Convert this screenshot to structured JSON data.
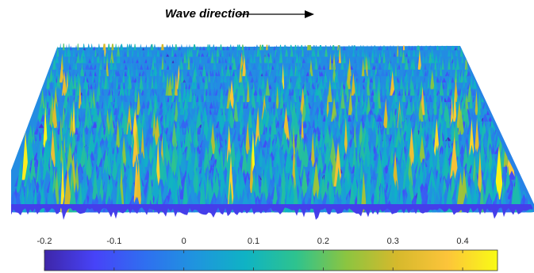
{
  "annotation": {
    "text": "Wave direction"
  },
  "colormap": [
    "#3e26a8",
    "#4743f8",
    "#2f6ff0",
    "#1f95de",
    "#0fb3c4",
    "#2ec38e",
    "#8cc540",
    "#d6b92c",
    "#fcc43a",
    "#f9fb15"
  ],
  "chart_data": {
    "type": "surface",
    "title": "",
    "colorbar": {
      "location": "bottom",
      "range": [
        -0.2,
        0.45
      ],
      "ticks": [
        -0.2,
        -0.1,
        0,
        0.1,
        0.2,
        0.3,
        0.4
      ],
      "tick_labels": [
        "-0.2",
        "-0.1",
        "0",
        "0.1",
        "0.2",
        "0.3",
        "0.4"
      ]
    },
    "surface": {
      "description": "3-D wave elevation surface seen in oblique perspective; peaks mostly between -0.1 and 0.2, with occasional crests reaching about 0.4",
      "z_range": [
        -0.2,
        0.45
      ]
    },
    "grid": false,
    "axes_visible": false
  }
}
